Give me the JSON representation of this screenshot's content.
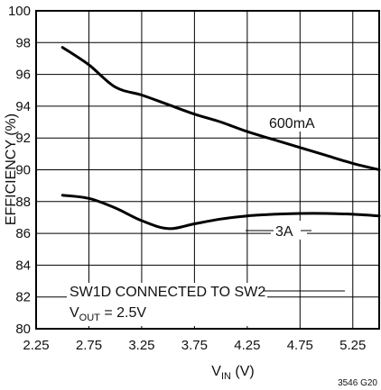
{
  "chart_data": {
    "type": "line",
    "xlabel": {
      "main": "V",
      "sub": "IN",
      "unit": " (V)"
    },
    "ylabel": "EFFICIENCY (%)",
    "xlim": [
      2.25,
      5.5
    ],
    "ylim": [
      80,
      100
    ],
    "xticks": [
      "2.25",
      "2.75",
      "3.25",
      "3.75",
      "4.25",
      "4.75",
      "5.25"
    ],
    "yticks": [
      "80",
      "82",
      "84",
      "86",
      "88",
      "90",
      "92",
      "94",
      "96",
      "98",
      "100"
    ],
    "grid": true,
    "series": [
      {
        "name": "600mA",
        "x": [
          2.5,
          2.75,
          3.0,
          3.25,
          3.5,
          3.75,
          4.0,
          4.25,
          4.5,
          4.75,
          5.0,
          5.25,
          5.5
        ],
        "y": [
          97.7,
          96.6,
          95.2,
          94.7,
          94.1,
          93.5,
          93.0,
          92.4,
          91.9,
          91.4,
          90.9,
          90.4,
          90.0
        ]
      },
      {
        "name": "3A",
        "x": [
          2.5,
          2.75,
          3.0,
          3.25,
          3.5,
          3.75,
          4.0,
          4.25,
          4.5,
          4.75,
          5.0,
          5.25,
          5.5
        ],
        "y": [
          88.4,
          88.2,
          87.6,
          86.8,
          86.3,
          86.6,
          86.9,
          87.1,
          87.2,
          87.25,
          87.25,
          87.2,
          87.1
        ]
      }
    ],
    "annotations": {
      "line1": "SW1D CONNECTED TO SW2",
      "line2_main": "V",
      "line2_sub": "OUT",
      "line2_rest": " = 2.5V"
    },
    "figure_id": "3546 G20"
  }
}
